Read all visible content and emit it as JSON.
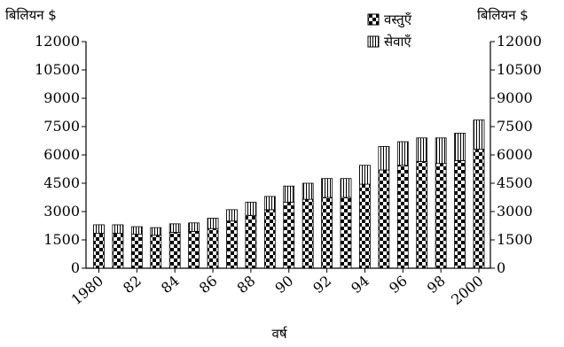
{
  "chart_data": {
    "type": "bar",
    "stacked": true,
    "unit_left": "बिलियन $",
    "unit_right": "बिलियन $",
    "xlabel": "वर्ष",
    "ylim": [
      0,
      12000
    ],
    "yticks": [
      "0",
      "1500",
      "3000",
      "4500",
      "6000",
      "7500",
      "9000",
      "10500",
      "12000"
    ],
    "years": [
      1980,
      1981,
      1982,
      1983,
      1984,
      1985,
      1986,
      1987,
      1988,
      1989,
      1990,
      1991,
      1992,
      1993,
      1994,
      1995,
      1996,
      1997,
      1998,
      1999,
      2000
    ],
    "xtick_labels": [
      "1980",
      "82",
      "84",
      "86",
      "88",
      "90",
      "92",
      "94",
      "96",
      "98",
      "2000"
    ],
    "legend_position": "top-right",
    "series": [
      {
        "name": "वस्तुएँ",
        "pattern": "checker",
        "values": [
          1850,
          1850,
          1800,
          1750,
          1900,
          1950,
          2100,
          2500,
          2800,
          3100,
          3500,
          3650,
          3750,
          3750,
          4450,
          5200,
          5450,
          5650,
          5550,
          5700,
          6300
        ]
      },
      {
        "name": "सेवाएँ",
        "pattern": "vertical-lines",
        "values": [
          450,
          450,
          400,
          400,
          450,
          450,
          550,
          600,
          700,
          700,
          850,
          850,
          1000,
          1000,
          1000,
          1250,
          1250,
          1250,
          1350,
          1450,
          1550
        ]
      }
    ]
  }
}
